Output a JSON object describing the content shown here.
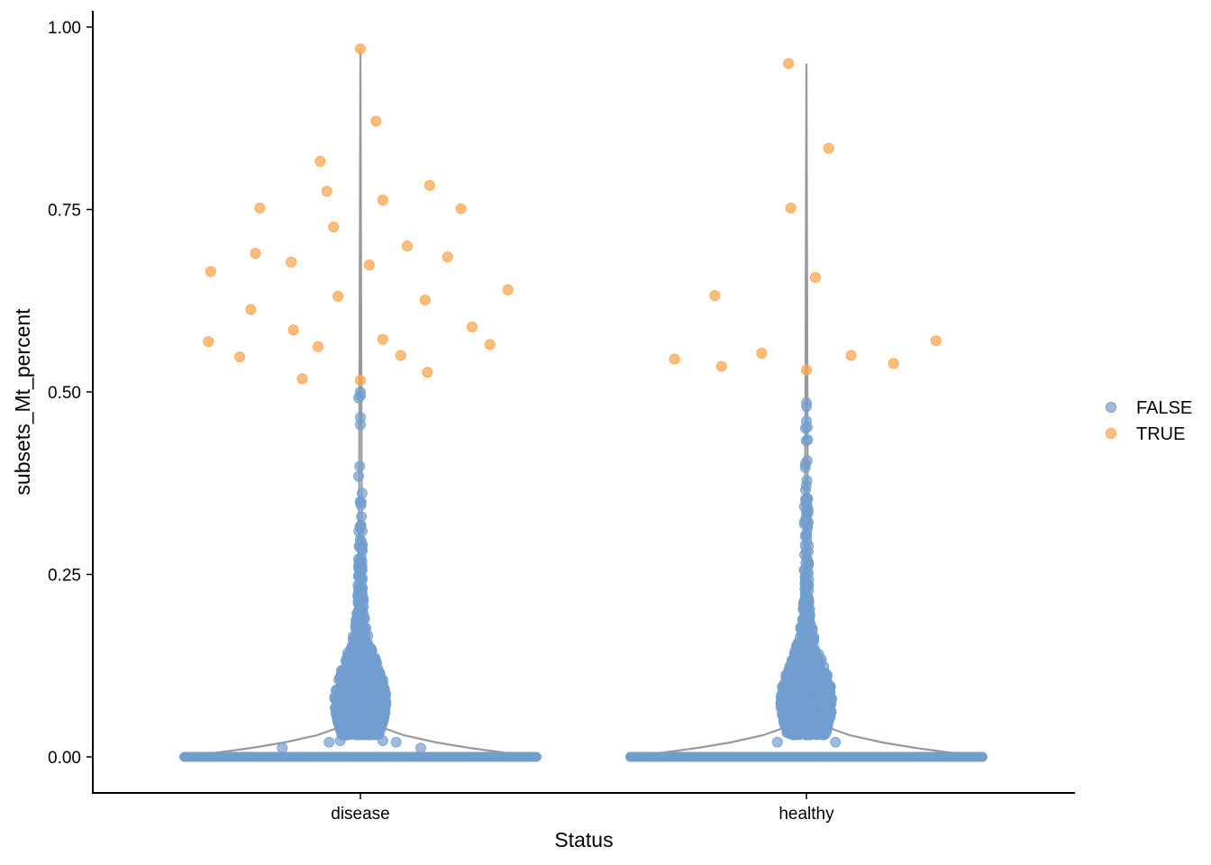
{
  "chart_data": {
    "type": "scatter",
    "subtype": "violin-with-jittered-points",
    "title": "",
    "xlabel": "Status",
    "ylabel": "subsets_Mt_percent",
    "categories": [
      "disease",
      "healthy"
    ],
    "ylim": [
      -0.05,
      1.02
    ],
    "yticks": [
      0.0,
      0.25,
      0.5,
      0.75,
      1.0
    ],
    "ytick_labels": [
      "0.00",
      "0.25",
      "0.50",
      "0.75",
      "1.00"
    ],
    "grid": false,
    "legend": {
      "position": "right",
      "title": "",
      "entries": [
        {
          "label": "FALSE",
          "color": "#729ECE"
        },
        {
          "label": "TRUE",
          "color": "#FFA54F"
        }
      ]
    },
    "violin_color": "#999999",
    "series": [
      {
        "name": "TRUE",
        "color": "#FFA54F",
        "points": [
          {
            "x": "disease",
            "jitter": 0.0,
            "y": 0.97
          },
          {
            "x": "disease",
            "jitter": 0.07,
            "y": 0.871
          },
          {
            "x": "disease",
            "jitter": -0.18,
            "y": 0.816
          },
          {
            "x": "disease",
            "jitter": 0.31,
            "y": 0.783
          },
          {
            "x": "disease",
            "jitter": -0.15,
            "y": 0.775
          },
          {
            "x": "disease",
            "jitter": 0.1,
            "y": 0.763
          },
          {
            "x": "disease",
            "jitter": -0.45,
            "y": 0.752
          },
          {
            "x": "disease",
            "jitter": 0.45,
            "y": 0.751
          },
          {
            "x": "disease",
            "jitter": -0.12,
            "y": 0.726
          },
          {
            "x": "disease",
            "jitter": 0.21,
            "y": 0.7
          },
          {
            "x": "disease",
            "jitter": -0.47,
            "y": 0.69
          },
          {
            "x": "disease",
            "jitter": 0.39,
            "y": 0.685
          },
          {
            "x": "disease",
            "jitter": -0.31,
            "y": 0.678
          },
          {
            "x": "disease",
            "jitter": 0.04,
            "y": 0.674
          },
          {
            "x": "disease",
            "jitter": -0.67,
            "y": 0.665
          },
          {
            "x": "disease",
            "jitter": 0.66,
            "y": 0.64
          },
          {
            "x": "disease",
            "jitter": -0.1,
            "y": 0.631
          },
          {
            "x": "disease",
            "jitter": 0.29,
            "y": 0.626
          },
          {
            "x": "disease",
            "jitter": -0.49,
            "y": 0.613
          },
          {
            "x": "disease",
            "jitter": 0.5,
            "y": 0.589
          },
          {
            "x": "disease",
            "jitter": -0.3,
            "y": 0.585
          },
          {
            "x": "disease",
            "jitter": 0.1,
            "y": 0.572
          },
          {
            "x": "disease",
            "jitter": -0.68,
            "y": 0.569
          },
          {
            "x": "disease",
            "jitter": 0.58,
            "y": 0.565
          },
          {
            "x": "disease",
            "jitter": -0.19,
            "y": 0.562
          },
          {
            "x": "disease",
            "jitter": 0.18,
            "y": 0.55
          },
          {
            "x": "disease",
            "jitter": -0.54,
            "y": 0.548
          },
          {
            "x": "disease",
            "jitter": 0.3,
            "y": 0.527
          },
          {
            "x": "disease",
            "jitter": -0.26,
            "y": 0.518
          },
          {
            "x": "disease",
            "jitter": 0.0,
            "y": 0.516
          },
          {
            "x": "healthy",
            "jitter": -0.08,
            "y": 0.95
          },
          {
            "x": "healthy",
            "jitter": 0.1,
            "y": 0.834
          },
          {
            "x": "healthy",
            "jitter": -0.07,
            "y": 0.752
          },
          {
            "x": "healthy",
            "jitter": 0.04,
            "y": 0.657
          },
          {
            "x": "healthy",
            "jitter": -0.41,
            "y": 0.632
          },
          {
            "x": "healthy",
            "jitter": 0.58,
            "y": 0.57
          },
          {
            "x": "healthy",
            "jitter": -0.2,
            "y": 0.553
          },
          {
            "x": "healthy",
            "jitter": 0.2,
            "y": 0.55
          },
          {
            "x": "healthy",
            "jitter": -0.59,
            "y": 0.545
          },
          {
            "x": "healthy",
            "jitter": 0.39,
            "y": 0.539
          },
          {
            "x": "healthy",
            "jitter": -0.38,
            "y": 0.535
          },
          {
            "x": "healthy",
            "jitter": 0.0,
            "y": 0.53
          }
        ]
      },
      {
        "name": "FALSE",
        "color": "#729ECE",
        "groups": [
          {
            "category": "disease",
            "baseline_y": 0.0,
            "baseline_halfwidth": 0.81,
            "max_y": 0.5,
            "upper_points": [
              {
                "jitter": 0.0,
                "y": 0.5
              },
              {
                "jitter": 0.0,
                "y": 0.495
              },
              {
                "jitter": 0.0,
                "y": 0.465
              },
              {
                "jitter": 0.0,
                "y": 0.455
              }
            ],
            "scatter_near_zero": [
              {
                "jitter": -0.35,
                "y": 0.012
              },
              {
                "jitter": 0.27,
                "y": 0.012
              },
              {
                "jitter": -0.14,
                "y": 0.02
              },
              {
                "jitter": 0.16,
                "y": 0.02
              },
              {
                "jitter": -0.09,
                "y": 0.022
              },
              {
                "jitter": 0.1,
                "y": 0.022
              }
            ]
          },
          {
            "category": "healthy",
            "baseline_y": 0.0,
            "baseline_halfwidth": 0.81,
            "max_y": 0.485,
            "upper_points": [
              {
                "jitter": 0.0,
                "y": 0.485
              },
              {
                "jitter": 0.0,
                "y": 0.48
              },
              {
                "jitter": 0.0,
                "y": 0.46
              }
            ],
            "scatter_near_zero": [
              {
                "jitter": -0.13,
                "y": 0.02
              },
              {
                "jitter": 0.13,
                "y": 0.02
              }
            ]
          }
        ]
      }
    ]
  }
}
